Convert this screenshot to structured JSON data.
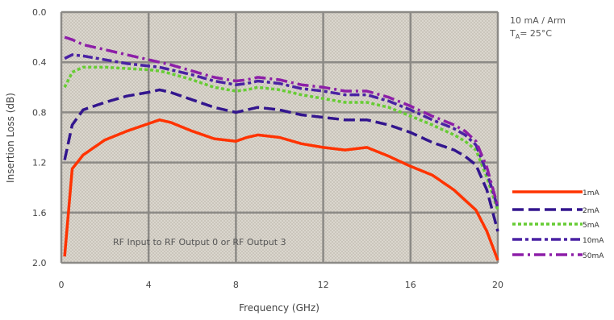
{
  "chart_data": {
    "type": "line",
    "xlabel": "Frequency (GHz)",
    "ylabel": "Insertion Loss (dB)",
    "xlim": [
      0,
      20
    ],
    "ylim": [
      0.0,
      2.0
    ],
    "y_inverted": true,
    "x_ticks": [
      "0",
      "4",
      "8",
      "12",
      "16",
      "20"
    ],
    "y_ticks": [
      "0.0",
      "0.4",
      "0.8",
      "1.2",
      "1.6",
      "2.0"
    ],
    "grid": true,
    "legend_position": "right",
    "annotations": {
      "condition_line1": "10 mA / Arm",
      "condition_line2": "T",
      "condition_line2_sub": "A",
      "condition_line2_rest": "= 25°C",
      "path_note": "RF Input to RF Output 0 or RF Output 3"
    },
    "x": [
      0.15,
      0.5,
      1,
      2,
      3,
      4,
      4.5,
      5,
      6,
      7,
      8,
      8.5,
      9,
      10,
      11,
      12,
      13,
      14,
      15,
      16,
      17,
      18,
      18.5,
      19,
      19.5,
      20
    ],
    "series": [
      {
        "name": "1mA",
        "color": "#ff3300",
        "dash": "",
        "values": [
          1.95,
          1.25,
          1.14,
          1.02,
          0.95,
          0.89,
          0.86,
          0.88,
          0.95,
          1.01,
          1.03,
          1.0,
          0.98,
          1.0,
          1.05,
          1.08,
          1.1,
          1.08,
          1.15,
          1.23,
          1.3,
          1.42,
          1.5,
          1.58,
          1.75,
          1.98
        ]
      },
      {
        "name": "2mA",
        "color": "#33168e",
        "dash": "14 6",
        "values": [
          1.18,
          0.9,
          0.78,
          0.72,
          0.67,
          0.64,
          0.62,
          0.64,
          0.7,
          0.76,
          0.8,
          0.78,
          0.76,
          0.78,
          0.82,
          0.84,
          0.86,
          0.86,
          0.9,
          0.96,
          1.04,
          1.1,
          1.15,
          1.22,
          1.42,
          1.75
        ]
      },
      {
        "name": "5mA",
        "color": "#66cc33",
        "dash": "4 3",
        "values": [
          0.6,
          0.48,
          0.44,
          0.44,
          0.45,
          0.46,
          0.47,
          0.49,
          0.54,
          0.6,
          0.63,
          0.62,
          0.6,
          0.62,
          0.66,
          0.69,
          0.72,
          0.72,
          0.76,
          0.83,
          0.9,
          0.98,
          1.03,
          1.1,
          1.32,
          1.58
        ]
      },
      {
        "name": "10mA",
        "color": "#4a22a4",
        "dash": "12 4 4 4",
        "values": [
          0.37,
          0.34,
          0.35,
          0.38,
          0.41,
          0.43,
          0.44,
          0.46,
          0.5,
          0.55,
          0.58,
          0.57,
          0.55,
          0.57,
          0.61,
          0.63,
          0.66,
          0.66,
          0.71,
          0.78,
          0.86,
          0.93,
          0.98,
          1.06,
          1.28,
          1.56
        ]
      },
      {
        "name": "50mA",
        "color": "#8d1fa8",
        "dash": "14 5 3 5",
        "values": [
          0.2,
          0.22,
          0.26,
          0.3,
          0.34,
          0.38,
          0.4,
          0.42,
          0.47,
          0.52,
          0.55,
          0.54,
          0.52,
          0.54,
          0.58,
          0.6,
          0.63,
          0.63,
          0.68,
          0.75,
          0.83,
          0.9,
          0.95,
          1.03,
          1.24,
          1.55
        ]
      }
    ]
  }
}
